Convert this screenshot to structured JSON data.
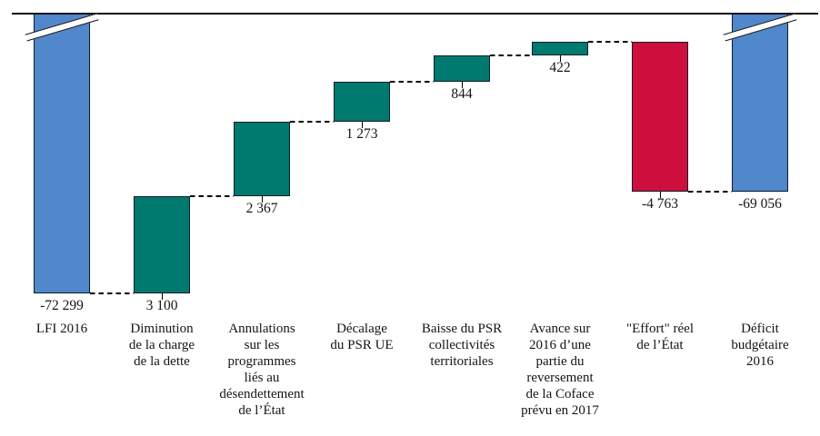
{
  "chart_data": {
    "type": "bar",
    "subtype": "waterfall",
    "title": "",
    "value_format": "thousands separated by space",
    "axis_break_on_total_bars": true,
    "bars": [
      {
        "category_lines": "LFI 2016",
        "value": -72299,
        "value_label": "-72 299",
        "role": "total"
      },
      {
        "category_lines": "Diminution\nde la charge\nde la dette",
        "value": 3100,
        "value_label": "3 100",
        "role": "increase"
      },
      {
        "category_lines": "Annulations\nsur les\nprogrammes\nliés au\ndésendettement\nde l’État",
        "value": 2367,
        "value_label": "2 367",
        "role": "increase"
      },
      {
        "category_lines": "Décalage\ndu PSR UE",
        "value": 1273,
        "value_label": "1 273",
        "role": "increase"
      },
      {
        "category_lines": "Baisse du PSR\ncollectivités\nterritoriales",
        "value": 844,
        "value_label": "844",
        "role": "increase"
      },
      {
        "category_lines": "Avance sur\n2016 d’une\npartie du\nreversement\nde la Coface\nprévu en 2017",
        "value": 422,
        "value_label": "422",
        "role": "increase"
      },
      {
        "category_lines": "\"Effort\" réel\nde l’État",
        "value": -4763,
        "value_label": "-4 763",
        "role": "decrease"
      },
      {
        "category_lines": "Déficit\nbudgétaire\n2016",
        "value": -69056,
        "value_label": "-69 056",
        "role": "total"
      }
    ],
    "colors": {
      "total": "#5187cb",
      "increase": "#00796e",
      "decrease": "#ce0f3e",
      "connector": "#000000",
      "axis_line": "#121212"
    }
  }
}
